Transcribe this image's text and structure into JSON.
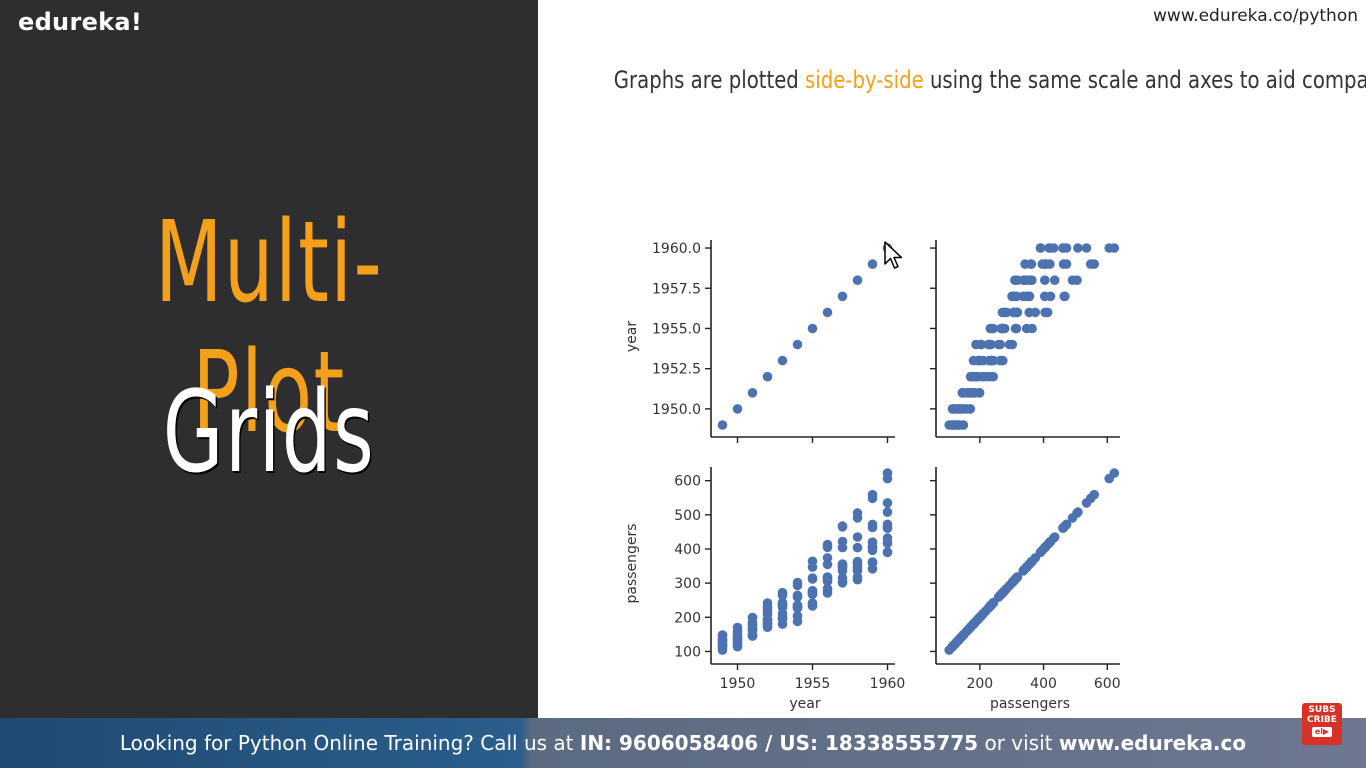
{
  "brand": {
    "logo": "edureka!",
    "url": "www.edureka.co/python"
  },
  "left": {
    "title_line1": "Multi-Plot",
    "title_line2": "Grids"
  },
  "headline": {
    "before": "Graphs are plotted ",
    "highlight": "side-by-side",
    "after": " using the same scale and axes to aid comparison"
  },
  "colors": {
    "accent": "#f5a01a",
    "dark_panel": "#2e2d2f",
    "points": "#4c72b0",
    "banner": "#2b5e8c"
  },
  "chart_data": [
    {
      "type": "scatter",
      "panel": "year-vs-year",
      "xlabel": "",
      "ylabel": "year",
      "ylim": [
        1949,
        1960
      ],
      "xlim": [
        1949,
        1960
      ],
      "yticks": [
        "1950.0",
        "1952.5",
        "1955.0",
        "1957.5",
        "1960.0"
      ],
      "x": [
        1949,
        1950,
        1951,
        1952,
        1953,
        1954,
        1955,
        1956,
        1957,
        1958,
        1959,
        1960
      ],
      "y": [
        1949,
        1950,
        1951,
        1952,
        1953,
        1954,
        1955,
        1956,
        1957,
        1958,
        1959,
        1960
      ]
    },
    {
      "type": "scatter",
      "panel": "passengers-vs-year",
      "xlabel": "",
      "ylabel": "",
      "xlim": [
        104,
        622
      ],
      "ylim": [
        1949,
        1960
      ],
      "points": [
        [
          112,
          1949
        ],
        [
          118,
          1949
        ],
        [
          132,
          1949
        ],
        [
          129,
          1949
        ],
        [
          121,
          1949
        ],
        [
          135,
          1949
        ],
        [
          148,
          1949
        ],
        [
          148,
          1949
        ],
        [
          136,
          1949
        ],
        [
          119,
          1949
        ],
        [
          104,
          1949
        ],
        [
          118,
          1949
        ],
        [
          115,
          1950
        ],
        [
          126,
          1950
        ],
        [
          141,
          1950
        ],
        [
          135,
          1950
        ],
        [
          125,
          1950
        ],
        [
          149,
          1950
        ],
        [
          170,
          1950
        ],
        [
          170,
          1950
        ],
        [
          158,
          1950
        ],
        [
          133,
          1950
        ],
        [
          114,
          1950
        ],
        [
          140,
          1950
        ],
        [
          145,
          1951
        ],
        [
          150,
          1951
        ],
        [
          178,
          1951
        ],
        [
          163,
          1951
        ],
        [
          172,
          1951
        ],
        [
          178,
          1951
        ],
        [
          199,
          1951
        ],
        [
          199,
          1951
        ],
        [
          184,
          1951
        ],
        [
          162,
          1951
        ],
        [
          146,
          1951
        ],
        [
          166,
          1951
        ],
        [
          171,
          1952
        ],
        [
          180,
          1952
        ],
        [
          193,
          1952
        ],
        [
          181,
          1952
        ],
        [
          183,
          1952
        ],
        [
          218,
          1952
        ],
        [
          230,
          1952
        ],
        [
          242,
          1952
        ],
        [
          209,
          1952
        ],
        [
          191,
          1952
        ],
        [
          172,
          1952
        ],
        [
          194,
          1952
        ],
        [
          196,
          1953
        ],
        [
          196,
          1953
        ],
        [
          236,
          1953
        ],
        [
          235,
          1953
        ],
        [
          229,
          1953
        ],
        [
          243,
          1953
        ],
        [
          264,
          1953
        ],
        [
          272,
          1953
        ],
        [
          237,
          1953
        ],
        [
          211,
          1953
        ],
        [
          180,
          1953
        ],
        [
          201,
          1953
        ],
        [
          204,
          1954
        ],
        [
          188,
          1954
        ],
        [
          235,
          1954
        ],
        [
          227,
          1954
        ],
        [
          234,
          1954
        ],
        [
          264,
          1954
        ],
        [
          302,
          1954
        ],
        [
          293,
          1954
        ],
        [
          259,
          1954
        ],
        [
          229,
          1954
        ],
        [
          203,
          1954
        ],
        [
          229,
          1954
        ],
        [
          242,
          1955
        ],
        [
          233,
          1955
        ],
        [
          267,
          1955
        ],
        [
          269,
          1955
        ],
        [
          270,
          1955
        ],
        [
          315,
          1955
        ],
        [
          364,
          1955
        ],
        [
          347,
          1955
        ],
        [
          312,
          1955
        ],
        [
          274,
          1955
        ],
        [
          237,
          1955
        ],
        [
          278,
          1955
        ],
        [
          284,
          1956
        ],
        [
          277,
          1956
        ],
        [
          317,
          1956
        ],
        [
          313,
          1956
        ],
        [
          318,
          1956
        ],
        [
          374,
          1956
        ],
        [
          413,
          1956
        ],
        [
          405,
          1956
        ],
        [
          355,
          1956
        ],
        [
          306,
          1956
        ],
        [
          271,
          1956
        ],
        [
          306,
          1956
        ],
        [
          315,
          1957
        ],
        [
          301,
          1957
        ],
        [
          356,
          1957
        ],
        [
          348,
          1957
        ],
        [
          355,
          1957
        ],
        [
          422,
          1957
        ],
        [
          465,
          1957
        ],
        [
          467,
          1957
        ],
        [
          404,
          1957
        ],
        [
          347,
          1957
        ],
        [
          305,
          1957
        ],
        [
          336,
          1957
        ],
        [
          340,
          1958
        ],
        [
          318,
          1958
        ],
        [
          362,
          1958
        ],
        [
          348,
          1958
        ],
        [
          363,
          1958
        ],
        [
          435,
          1958
        ],
        [
          491,
          1958
        ],
        [
          505,
          1958
        ],
        [
          404,
          1958
        ],
        [
          359,
          1958
        ],
        [
          310,
          1958
        ],
        [
          337,
          1958
        ],
        [
          360,
          1959
        ],
        [
          342,
          1959
        ],
        [
          406,
          1959
        ],
        [
          396,
          1959
        ],
        [
          420,
          1959
        ],
        [
          472,
          1959
        ],
        [
          548,
          1959
        ],
        [
          559,
          1959
        ],
        [
          463,
          1959
        ],
        [
          407,
          1959
        ],
        [
          362,
          1959
        ],
        [
          405,
          1959
        ],
        [
          417,
          1960
        ],
        [
          391,
          1960
        ],
        [
          419,
          1960
        ],
        [
          461,
          1960
        ],
        [
          472,
          1960
        ],
        [
          535,
          1960
        ],
        [
          622,
          1960
        ],
        [
          606,
          1960
        ],
        [
          508,
          1960
        ],
        [
          461,
          1960
        ],
        [
          390,
          1960
        ],
        [
          432,
          1960
        ]
      ]
    },
    {
      "type": "scatter",
      "panel": "year-vs-passengers",
      "xlabel": "year",
      "ylabel": "passengers",
      "xlim": [
        1949,
        1960
      ],
      "ylim": [
        80,
        640
      ],
      "xticks": [
        "1950",
        "1955",
        "1960"
      ],
      "yticks": [
        "100",
        "200",
        "300",
        "400",
        "500",
        "600"
      ]
    },
    {
      "type": "scatter",
      "panel": "passengers-vs-passengers",
      "xlabel": "passengers",
      "ylabel": "",
      "xlim": [
        80,
        640
      ],
      "ylim": [
        80,
        640
      ],
      "xticks": [
        "200",
        "400",
        "600"
      ]
    }
  ],
  "banner": {
    "prefix": "Looking for Python Online Training? Call us at ",
    "in_label": "IN: 9606058406 / US: 18338555775",
    "middle": " or visit ",
    "site": "www.edureka.co"
  },
  "subscribe": {
    "line1": "SUBS",
    "line2": "CRIBE",
    "logo": "el▶"
  }
}
